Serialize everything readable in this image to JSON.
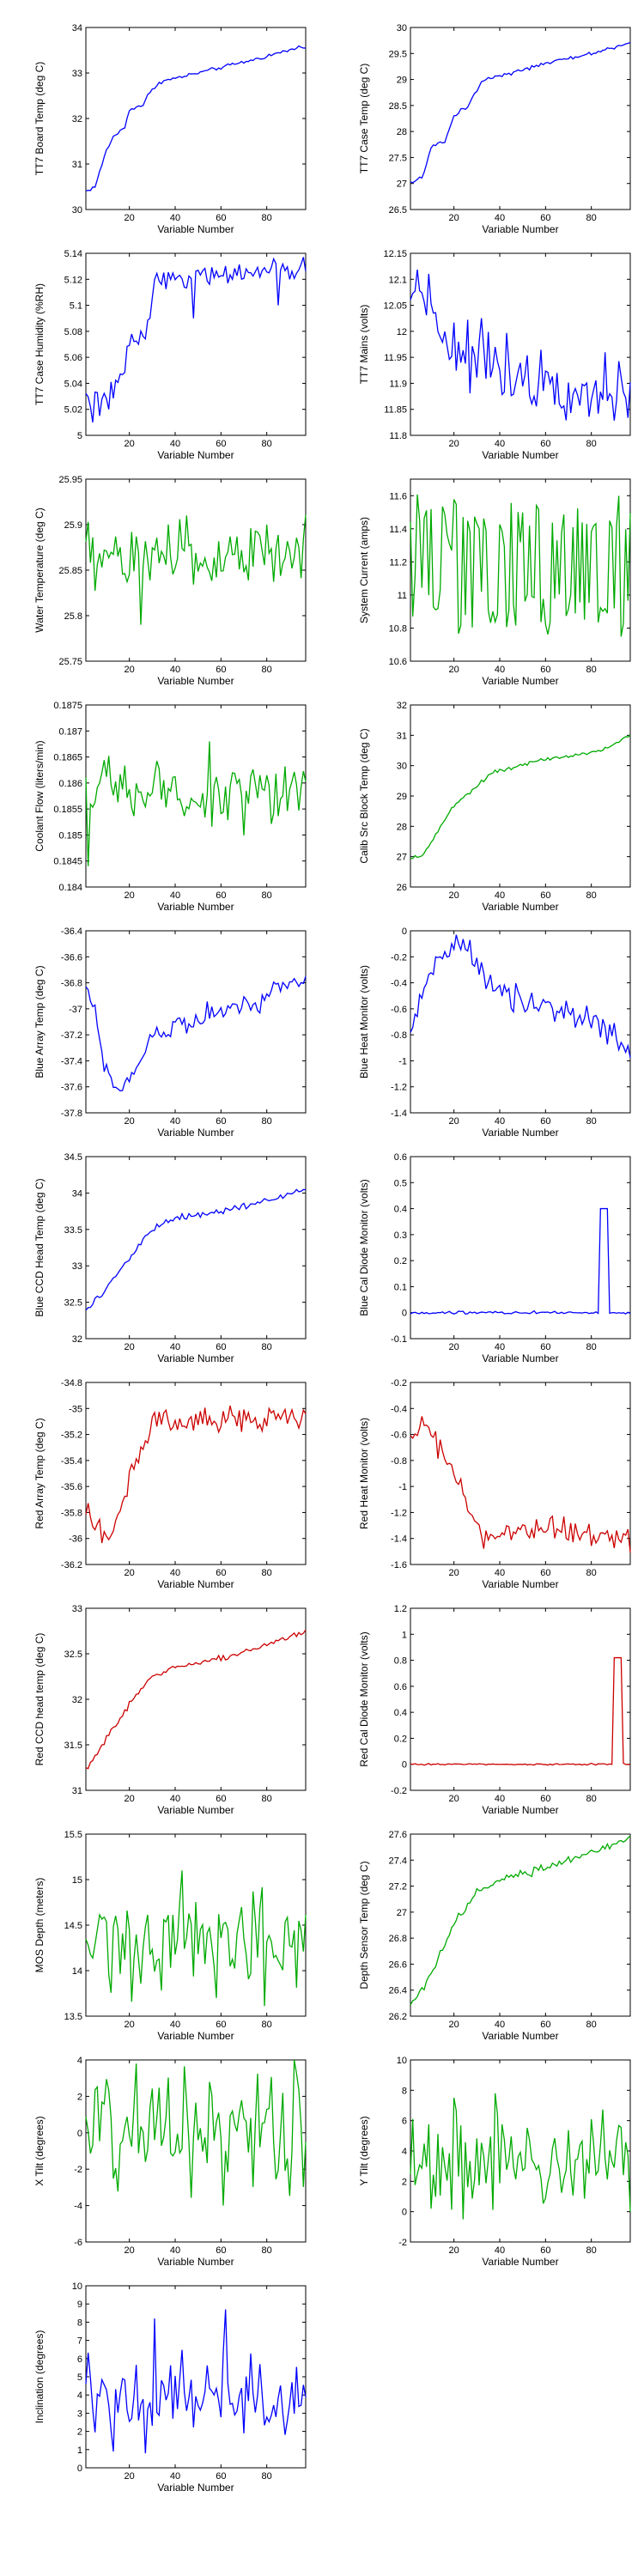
{
  "colors": {
    "blue": "#0000ff",
    "green": "#00aa00",
    "red": "#cc0000",
    "axis": "#000000"
  },
  "chart_data": [
    {
      "type": "line",
      "xlabel": "Variable Number",
      "ylabel": "TT7 Board Temp (deg C)",
      "color": "blue",
      "xlim": [
        1,
        97
      ],
      "xticks": [
        20,
        40,
        60,
        80
      ],
      "ylim": [
        30,
        34
      ],
      "yticks": [
        30,
        31,
        32,
        33,
        34
      ],
      "gen": "trend",
      "key_points": [
        [
          1,
          30.4
        ],
        [
          5,
          30.5
        ],
        [
          10,
          31.3
        ],
        [
          13,
          31.6
        ],
        [
          18,
          31.8
        ],
        [
          20,
          32.2
        ],
        [
          26,
          32.3
        ],
        [
          28,
          32.5
        ],
        [
          33,
          32.8
        ],
        [
          50,
          33.0
        ],
        [
          75,
          33.3
        ],
        [
          97,
          33.6
        ]
      ],
      "noise": 0.02
    },
    {
      "type": "line",
      "xlabel": "Variable Number",
      "ylabel": "TT7 Case Temp (deg C)",
      "color": "blue",
      "xlim": [
        1,
        97
      ],
      "xticks": [
        20,
        40,
        60,
        80
      ],
      "ylim": [
        26.5,
        30
      ],
      "yticks": [
        26.5,
        27,
        27.5,
        28,
        28.5,
        29,
        29.5,
        30
      ],
      "gen": "trend",
      "key_points": [
        [
          1,
          27.0
        ],
        [
          6,
          27.1
        ],
        [
          10,
          27.7
        ],
        [
          16,
          27.8
        ],
        [
          20,
          28.3
        ],
        [
          26,
          28.5
        ],
        [
          33,
          29.0
        ],
        [
          60,
          29.3
        ],
        [
          80,
          29.5
        ],
        [
          97,
          29.7
        ]
      ],
      "noise": 0.02
    },
    {
      "type": "line",
      "xlabel": "Variable Number",
      "ylabel": "TT7 Case Humidity (%RH)",
      "color": "blue",
      "xlim": [
        1,
        97
      ],
      "xticks": [
        20,
        40,
        60,
        80
      ],
      "ylim": [
        5,
        5.14
      ],
      "yticks": [
        5,
        5.02,
        5.04,
        5.06,
        5.08,
        5.1,
        5.12,
        5.14
      ],
      "gen": "trend",
      "key_points": [
        [
          1,
          5.03
        ],
        [
          10,
          5.03
        ],
        [
          16,
          5.04
        ],
        [
          20,
          5.07
        ],
        [
          27,
          5.08
        ],
        [
          30,
          5.11
        ],
        [
          33,
          5.12
        ],
        [
          60,
          5.124
        ],
        [
          97,
          5.127
        ]
      ],
      "noise": 0.004,
      "spikes": [
        [
          4,
          5.01
        ],
        [
          7,
          5.015
        ],
        [
          11,
          5.02
        ],
        [
          24,
          5.07
        ],
        [
          48,
          5.09
        ],
        [
          85,
          5.1
        ]
      ]
    },
    {
      "type": "line",
      "xlabel": "Variable Number",
      "ylabel": "TT7 Mains  (volts)",
      "color": "blue",
      "xlim": [
        1,
        97
      ],
      "xticks": [
        20,
        40,
        60,
        80
      ],
      "ylim": [
        11.8,
        12.15
      ],
      "yticks": [
        11.8,
        11.85,
        11.9,
        11.95,
        12,
        12.05,
        12.1,
        12.15
      ],
      "gen": "trend",
      "key_points": [
        [
          1,
          12.07
        ],
        [
          6,
          12.1
        ],
        [
          15,
          12.0
        ],
        [
          25,
          11.95
        ],
        [
          35,
          11.95
        ],
        [
          50,
          11.92
        ],
        [
          70,
          11.9
        ],
        [
          97,
          11.87
        ]
      ],
      "noise": 0.03
    },
    {
      "type": "line",
      "xlabel": "Variable Number",
      "ylabel": "Water Temperature (deg C)",
      "color": "green",
      "xlim": [
        1,
        97
      ],
      "xticks": [
        20,
        40,
        60,
        80
      ],
      "ylim": [
        25.75,
        25.95
      ],
      "yticks": [
        25.75,
        25.8,
        25.85,
        25.9,
        25.95
      ],
      "gen": "noise",
      "mean": 25.865,
      "noise": 0.02,
      "spikes": [
        [
          25,
          25.79
        ],
        [
          45,
          25.91
        ],
        [
          80,
          25.9
        ]
      ]
    },
    {
      "type": "line",
      "xlabel": "Variable Number",
      "ylabel": "System Current (amps)",
      "color": "green",
      "xlim": [
        1,
        97
      ],
      "xticks": [
        20,
        40,
        60,
        80
      ],
      "ylim": [
        10.6,
        11.7
      ],
      "yticks": [
        10.6,
        10.8,
        11,
        11.2,
        11.4,
        11.6
      ],
      "gen": "square",
      "high": 11.45,
      "low": 10.9,
      "noise": 0.08
    },
    {
      "type": "line",
      "xlabel": "Variable Number",
      "ylabel": "Coolant Flow (liters/min)",
      "color": "green",
      "xlim": [
        1,
        97
      ],
      "xticks": [
        20,
        40,
        60,
        80
      ],
      "ylim": [
        0.184,
        0.1875
      ],
      "yticks": [
        0.184,
        0.1845,
        0.185,
        0.1855,
        0.186,
        0.1865,
        0.187,
        0.1875
      ],
      "gen": "noise",
      "mean": 0.1858,
      "noise": 0.0003,
      "spikes": [
        [
          2,
          0.1844
        ],
        [
          55,
          0.1868
        ]
      ]
    },
    {
      "type": "line",
      "xlabel": "Variable Number",
      "ylabel": "Calib Src Block Temp (deg C)",
      "color": "green",
      "xlim": [
        1,
        97
      ],
      "xticks": [
        20,
        40,
        60,
        80
      ],
      "ylim": [
        26,
        32
      ],
      "yticks": [
        26,
        27,
        28,
        29,
        30,
        31,
        32
      ],
      "gen": "trend",
      "key_points": [
        [
          1,
          27.0
        ],
        [
          6,
          27.0
        ],
        [
          20,
          28.7
        ],
        [
          30,
          29.3
        ],
        [
          37,
          29.8
        ],
        [
          60,
          30.2
        ],
        [
          85,
          30.5
        ],
        [
          97,
          31.0
        ]
      ],
      "noise": 0.03
    },
    {
      "type": "line",
      "xlabel": "Variable Number",
      "ylabel": "Blue Array Temp (deg C)",
      "color": "blue",
      "xlim": [
        1,
        97
      ],
      "xticks": [
        20,
        40,
        60,
        80
      ],
      "ylim": [
        -37.8,
        -36.4
      ],
      "yticks": [
        -37.8,
        -37.6,
        -37.4,
        -37.2,
        -37,
        -36.8,
        -36.6,
        -36.4
      ],
      "gen": "trend",
      "key_points": [
        [
          1,
          -36.8
        ],
        [
          5,
          -37.0
        ],
        [
          10,
          -37.5
        ],
        [
          15,
          -37.65
        ],
        [
          22,
          -37.5
        ],
        [
          30,
          -37.2
        ],
        [
          45,
          -37.1
        ],
        [
          60,
          -37.0
        ],
        [
          75,
          -36.95
        ],
        [
          85,
          -36.8
        ],
        [
          97,
          -36.8
        ]
      ],
      "noise": 0.04
    },
    {
      "type": "line",
      "xlabel": "Variable Number",
      "ylabel": "Blue Heat Monitor (volts)",
      "color": "blue",
      "xlim": [
        1,
        97
      ],
      "xticks": [
        20,
        40,
        60,
        80
      ],
      "ylim": [
        -1.4,
        0
      ],
      "yticks": [
        -1.4,
        -1.2,
        -1,
        -0.8,
        -0.6,
        -0.4,
        -0.2,
        0
      ],
      "gen": "trend",
      "key_points": [
        [
          1,
          -0.8
        ],
        [
          6,
          -0.5
        ],
        [
          12,
          -0.25
        ],
        [
          20,
          -0.1
        ],
        [
          27,
          -0.2
        ],
        [
          35,
          -0.4
        ],
        [
          45,
          -0.5
        ],
        [
          60,
          -0.6
        ],
        [
          80,
          -0.7
        ],
        [
          97,
          -0.9
        ]
      ],
      "noise": 0.05
    },
    {
      "type": "line",
      "xlabel": "Variable Number",
      "ylabel": "Blue CCD Head Temp (deg C)",
      "color": "blue",
      "xlim": [
        1,
        97
      ],
      "xticks": [
        20,
        40,
        60,
        80
      ],
      "ylim": [
        32,
        34.5
      ],
      "yticks": [
        32,
        32.5,
        33,
        33.5,
        34,
        34.5
      ],
      "gen": "trend",
      "key_points": [
        [
          1,
          32.4
        ],
        [
          8,
          32.6
        ],
        [
          20,
          33.1
        ],
        [
          30,
          33.5
        ],
        [
          40,
          33.65
        ],
        [
          60,
          33.75
        ],
        [
          80,
          33.9
        ],
        [
          97,
          34.05
        ]
      ],
      "noise": 0.02
    },
    {
      "type": "line",
      "xlabel": "Variable Number",
      "ylabel": "Blue Cal Diode Monitor (volts)",
      "color": "blue",
      "xlim": [
        1,
        97
      ],
      "xticks": [
        20,
        40,
        60,
        80
      ],
      "ylim": [
        -0.1,
        0.6
      ],
      "yticks": [
        -0.1,
        0,
        0.1,
        0.2,
        0.3,
        0.4,
        0.5,
        0.6
      ],
      "gen": "pulse",
      "base": 0,
      "peak": 0.4,
      "pulse_start": 84,
      "pulse_end": 87,
      "noise": 0.003
    },
    {
      "type": "line",
      "xlabel": "Variable Number",
      "ylabel": "Red Array Temp (deg C)",
      "color": "red",
      "xlim": [
        1,
        97
      ],
      "xticks": [
        20,
        40,
        60,
        80
      ],
      "ylim": [
        -36.2,
        -34.8
      ],
      "yticks": [
        -36.2,
        -36,
        -35.8,
        -35.6,
        -35.4,
        -35.2,
        -35,
        -34.8
      ],
      "gen": "trend",
      "key_points": [
        [
          1,
          -35.8
        ],
        [
          5,
          -35.9
        ],
        [
          10,
          -36.05
        ],
        [
          15,
          -35.8
        ],
        [
          22,
          -35.5
        ],
        [
          30,
          -35.1
        ],
        [
          50,
          -35.1
        ],
        [
          70,
          -35.1
        ],
        [
          97,
          -35.05
        ]
      ],
      "noise": 0.05
    },
    {
      "type": "line",
      "xlabel": "Variable Number",
      "ylabel": "Red Heat Monitor (volts)",
      "color": "red",
      "xlim": [
        1,
        97
      ],
      "xticks": [
        20,
        40,
        60,
        80
      ],
      "ylim": [
        -1.6,
        -0.2
      ],
      "yticks": [
        -1.6,
        -1.4,
        -1.2,
        -1,
        -0.8,
        -0.6,
        -0.4,
        -0.2
      ],
      "gen": "trend",
      "key_points": [
        [
          1,
          -0.65
        ],
        [
          7,
          -0.5
        ],
        [
          15,
          -0.75
        ],
        [
          22,
          -0.95
        ],
        [
          30,
          -1.3
        ],
        [
          33,
          -1.4
        ],
        [
          60,
          -1.35
        ],
        [
          97,
          -1.38
        ]
      ],
      "noise": 0.05
    },
    {
      "type": "line",
      "xlabel": "Variable Number",
      "ylabel": "Red CCD head temp (deg C)",
      "color": "red",
      "xlim": [
        1,
        97
      ],
      "xticks": [
        20,
        40,
        60,
        80
      ],
      "ylim": [
        31,
        33
      ],
      "yticks": [
        31,
        31.5,
        32,
        32.5,
        33
      ],
      "gen": "trend",
      "key_points": [
        [
          1,
          31.25
        ],
        [
          6,
          31.4
        ],
        [
          20,
          31.95
        ],
        [
          30,
          32.25
        ],
        [
          40,
          32.35
        ],
        [
          60,
          32.45
        ],
        [
          80,
          32.6
        ],
        [
          97,
          32.75
        ]
      ],
      "noise": 0.02
    },
    {
      "type": "line",
      "xlabel": "Variable Number",
      "ylabel": "Red Cal Diode Monitor (volts)",
      "color": "red",
      "xlim": [
        1,
        97
      ],
      "xticks": [
        20,
        40,
        60,
        80
      ],
      "ylim": [
        -0.2,
        1.2
      ],
      "yticks": [
        -0.2,
        0,
        0.2,
        0.4,
        0.6,
        0.8,
        1,
        1.2
      ],
      "gen": "pulse",
      "base": 0,
      "peak": 0.82,
      "pulse_start": 90,
      "pulse_end": 93,
      "noise": 0.003
    },
    {
      "type": "line",
      "xlabel": "Variable Number",
      "ylabel": "MOS Depth  (meters)",
      "color": "green",
      "xlim": [
        1,
        97
      ],
      "xticks": [
        20,
        40,
        60,
        80
      ],
      "ylim": [
        13.5,
        15.5
      ],
      "yticks": [
        13.5,
        14,
        14.5,
        15,
        15.5
      ],
      "gen": "noise",
      "mean": 14.3,
      "noise": 0.28,
      "spikes": [
        [
          43,
          15.1
        ],
        [
          58,
          13.7
        ]
      ]
    },
    {
      "type": "line",
      "xlabel": "Variable Number",
      "ylabel": "Depth Sensor Temp (deg C)",
      "color": "green",
      "xlim": [
        1,
        97
      ],
      "xticks": [
        20,
        40,
        60,
        80
      ],
      "ylim": [
        26.2,
        27.6
      ],
      "yticks": [
        26.2,
        26.4,
        26.6,
        26.8,
        27,
        27.2,
        27.4,
        27.6
      ],
      "gen": "trend",
      "key_points": [
        [
          1,
          26.3
        ],
        [
          6,
          26.4
        ],
        [
          20,
          26.9
        ],
        [
          30,
          27.15
        ],
        [
          40,
          27.25
        ],
        [
          60,
          27.35
        ],
        [
          80,
          27.45
        ],
        [
          97,
          27.58
        ]
      ],
      "noise": 0.02
    },
    {
      "type": "line",
      "xlabel": "Variable Number",
      "ylabel": "X Tilt  (degrees)",
      "color": "green",
      "xlim": [
        1,
        97
      ],
      "xticks": [
        20,
        40,
        60,
        80
      ],
      "ylim": [
        -6,
        4
      ],
      "yticks": [
        -6,
        -4,
        -2,
        0,
        2,
        4
      ],
      "gen": "noise",
      "mean": 0.2,
      "noise": 1.7,
      "spikes": [
        [
          23,
          3.8
        ],
        [
          92,
          4
        ],
        [
          61,
          -4
        ]
      ]
    },
    {
      "type": "line",
      "xlabel": "Variable Number",
      "ylabel": "Y Tilt  (degrees)",
      "color": "green",
      "xlim": [
        1,
        97
      ],
      "xticks": [
        20,
        40,
        60,
        80
      ],
      "ylim": [
        -2,
        10
      ],
      "yticks": [
        -2,
        0,
        2,
        4,
        6,
        8,
        10
      ],
      "gen": "noise",
      "mean": 3.2,
      "noise": 1.5,
      "spikes": [
        [
          38,
          7.8
        ],
        [
          20,
          7.5
        ],
        [
          24,
          -0.5
        ],
        [
          97,
          0
        ]
      ]
    },
    {
      "type": "line",
      "xlabel": "Variable Number",
      "ylabel": "Inclination  (degrees)",
      "color": "blue",
      "xlim": [
        1,
        97
      ],
      "xticks": [
        20,
        40,
        60,
        80
      ],
      "ylim": [
        0,
        10
      ],
      "yticks": [
        0,
        1,
        2,
        3,
        4,
        5,
        6,
        7,
        8,
        9,
        10
      ],
      "gen": "noise",
      "mean": 3.8,
      "noise": 1.3,
      "spikes": [
        [
          31,
          8.2
        ],
        [
          62,
          8.7
        ],
        [
          27,
          0.8
        ],
        [
          13,
          0.9
        ]
      ]
    }
  ]
}
